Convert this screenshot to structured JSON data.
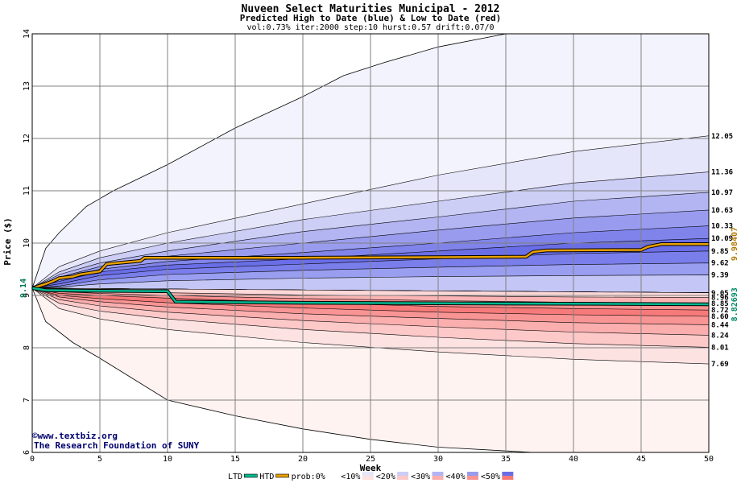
{
  "chart_data": {
    "type": "area",
    "title": "Nuveen Select Maturities Municipal  - 2012",
    "subtitle": "Predicted High to Date (blue) &  Low to Date (red)",
    "params": "vol:0.73% iter:2000 step:10 hurst:0.57 drift:0.07/0",
    "xlabel": "Week",
    "ylabel": "Price ($)",
    "xlim": [
      0,
      50
    ],
    "ylim": [
      6,
      14
    ],
    "x_ticks": [
      0,
      5,
      10,
      15,
      20,
      25,
      30,
      35,
      40,
      45,
      50
    ],
    "y_ticks": [
      6,
      7,
      8,
      9,
      10,
      11,
      12,
      13,
      14
    ],
    "grid": true,
    "start_price": 9.14,
    "start_label": "9.14",
    "watermark": [
      "©www.textbiz.org",
      "The Research Foundation of SUNY"
    ],
    "htd_end_value": 9.98407,
    "htd_end_label": "9.98407",
    "ltd_end_value": 8.82693,
    "ltd_end_label": "8.82693",
    "right_labels": [
      {
        "value": 12.05,
        "label": "12.05"
      },
      {
        "value": 11.36,
        "label": "11.36"
      },
      {
        "value": 10.97,
        "label": "10.97"
      },
      {
        "value": 10.63,
        "label": "10.63"
      },
      {
        "value": 10.33,
        "label": "10.33"
      },
      {
        "value": 10.09,
        "label": "10.09"
      },
      {
        "value": 9.85,
        "label": "9.85"
      },
      {
        "value": 9.62,
        "label": "9.62"
      },
      {
        "value": 9.39,
        "label": "9.39"
      },
      {
        "value": 9.05,
        "label": "9.05"
      },
      {
        "value": 8.96,
        "label": "8.96"
      },
      {
        "value": 8.85,
        "label": "8.85"
      },
      {
        "value": 8.72,
        "label": "8.72"
      },
      {
        "value": 8.6,
        "label": "8.60"
      },
      {
        "value": 8.44,
        "label": "8.44"
      },
      {
        "value": 8.24,
        "label": "8.24"
      },
      {
        "value": 8.01,
        "label": "8.01"
      },
      {
        "value": 7.69,
        "label": "7.69"
      }
    ],
    "outer_upper": [
      [
        0,
        9.14
      ],
      [
        1,
        9.9
      ],
      [
        2,
        10.2
      ],
      [
        4,
        10.7
      ],
      [
        6,
        11.0
      ],
      [
        10,
        11.5
      ],
      [
        15,
        12.2
      ],
      [
        20,
        12.8
      ],
      [
        23,
        13.2
      ],
      [
        26,
        13.45
      ],
      [
        30,
        13.75
      ],
      [
        35,
        14.05
      ]
    ],
    "outer_lower": [
      [
        0,
        9.14
      ],
      [
        1,
        8.5
      ],
      [
        3,
        8.1
      ],
      [
        5,
        7.8
      ],
      [
        10,
        7.0
      ],
      [
        15,
        6.7
      ],
      [
        20,
        6.45
      ],
      [
        25,
        6.25
      ],
      [
        30,
        6.1
      ],
      [
        37,
        6.0
      ]
    ],
    "bands": [
      {
        "color": "#e6e6fa",
        "upper": [
          [
            0,
            9.14
          ],
          [
            2,
            9.55
          ],
          [
            5,
            9.85
          ],
          [
            10,
            10.2
          ],
          [
            20,
            10.75
          ],
          [
            30,
            11.3
          ],
          [
            40,
            11.75
          ],
          [
            50,
            12.05
          ]
        ],
        "lower": [
          [
            0,
            9.14
          ],
          [
            50,
            9.05
          ]
        ]
      },
      {
        "color": "#cccef6",
        "upper": [
          [
            0,
            9.14
          ],
          [
            2,
            9.45
          ],
          [
            5,
            9.72
          ],
          [
            10,
            10.0
          ],
          [
            20,
            10.45
          ],
          [
            30,
            10.8
          ],
          [
            40,
            11.15
          ],
          [
            50,
            11.36
          ]
        ],
        "lower": [
          [
            0,
            9.14
          ],
          [
            50,
            9.05
          ]
        ]
      },
      {
        "color": "#b3b5f2",
        "upper": [
          [
            0,
            9.14
          ],
          [
            2,
            9.4
          ],
          [
            5,
            9.62
          ],
          [
            10,
            9.85
          ],
          [
            20,
            10.22
          ],
          [
            30,
            10.5
          ],
          [
            40,
            10.8
          ],
          [
            50,
            10.97
          ]
        ],
        "lower": [
          [
            0,
            9.14
          ],
          [
            50,
            9.05
          ]
        ]
      },
      {
        "color": "#999cee",
        "upper": [
          [
            0,
            9.14
          ],
          [
            2,
            9.35
          ],
          [
            5,
            9.55
          ],
          [
            10,
            9.75
          ],
          [
            20,
            10.0
          ],
          [
            30,
            10.25
          ],
          [
            40,
            10.48
          ],
          [
            50,
            10.63
          ]
        ],
        "lower": [
          [
            0,
            9.14
          ],
          [
            50,
            9.05
          ]
        ]
      },
      {
        "color": "#8084ea",
        "upper": [
          [
            0,
            9.14
          ],
          [
            2,
            9.3
          ],
          [
            5,
            9.5
          ],
          [
            10,
            9.65
          ],
          [
            20,
            9.82
          ],
          [
            30,
            10.0
          ],
          [
            40,
            10.2
          ],
          [
            50,
            10.33
          ]
        ],
        "lower": [
          [
            0,
            9.14
          ],
          [
            50,
            9.05
          ]
        ]
      },
      {
        "color": "#6a6ee6",
        "upper": [
          [
            0,
            9.14
          ],
          [
            2,
            9.27
          ],
          [
            5,
            9.45
          ],
          [
            10,
            9.58
          ],
          [
            20,
            9.7
          ],
          [
            30,
            9.85
          ],
          [
            40,
            10.0
          ],
          [
            50,
            10.09
          ]
        ],
        "lower": [
          [
            0,
            9.14
          ],
          [
            50,
            9.05
          ]
        ]
      },
      {
        "color": "#7a7eea",
        "upper": [
          [
            0,
            9.14
          ],
          [
            2,
            9.22
          ],
          [
            5,
            9.38
          ],
          [
            10,
            9.5
          ],
          [
            20,
            9.6
          ],
          [
            30,
            9.7
          ],
          [
            40,
            9.8
          ],
          [
            50,
            9.85
          ]
        ],
        "lower": [
          [
            0,
            9.14
          ],
          [
            50,
            9.05
          ]
        ]
      },
      {
        "color": "#9a9ef0",
        "upper": [
          [
            0,
            9.14
          ],
          [
            2,
            9.18
          ],
          [
            5,
            9.3
          ],
          [
            10,
            9.4
          ],
          [
            20,
            9.48
          ],
          [
            30,
            9.54
          ],
          [
            40,
            9.59
          ],
          [
            50,
            9.62
          ]
        ],
        "lower": [
          [
            0,
            9.14
          ],
          [
            50,
            9.05
          ]
        ]
      },
      {
        "color": "#c4c6f6",
        "upper": [
          [
            0,
            9.14
          ],
          [
            2,
            9.16
          ],
          [
            5,
            9.22
          ],
          [
            10,
            9.28
          ],
          [
            20,
            9.33
          ],
          [
            30,
            9.36
          ],
          [
            40,
            9.38
          ],
          [
            50,
            9.39
          ]
        ],
        "lower": [
          [
            0,
            9.14
          ],
          [
            50,
            9.05
          ]
        ]
      },
      {
        "color": "#fde2e2",
        "upper": [
          [
            0,
            9.14
          ],
          [
            50,
            9.05
          ]
        ],
        "lower": [
          [
            0,
            9.14
          ],
          [
            2,
            8.75
          ],
          [
            5,
            8.55
          ],
          [
            10,
            8.35
          ],
          [
            20,
            8.1
          ],
          [
            30,
            7.92
          ],
          [
            40,
            7.78
          ],
          [
            50,
            7.69
          ]
        ]
      },
      {
        "color": "#fcc8c8",
        "upper": [
          [
            0,
            9.14
          ],
          [
            50,
            9.05
          ]
        ],
        "lower": [
          [
            0,
            9.14
          ],
          [
            2,
            8.85
          ],
          [
            5,
            8.7
          ],
          [
            10,
            8.55
          ],
          [
            20,
            8.35
          ],
          [
            30,
            8.2
          ],
          [
            40,
            8.08
          ],
          [
            50,
            8.01
          ]
        ]
      },
      {
        "color": "#fbaeae",
        "upper": [
          [
            0,
            9.14
          ],
          [
            50,
            9.05
          ]
        ],
        "lower": [
          [
            0,
            9.14
          ],
          [
            2,
            8.92
          ],
          [
            5,
            8.8
          ],
          [
            10,
            8.68
          ],
          [
            20,
            8.52
          ],
          [
            30,
            8.4
          ],
          [
            40,
            8.3
          ],
          [
            50,
            8.24
          ]
        ]
      },
      {
        "color": "#f99494",
        "upper": [
          [
            0,
            9.14
          ],
          [
            50,
            9.05
          ]
        ],
        "lower": [
          [
            0,
            9.14
          ],
          [
            2,
            8.97
          ],
          [
            5,
            8.88
          ],
          [
            10,
            8.78
          ],
          [
            20,
            8.65
          ],
          [
            30,
            8.56
          ],
          [
            40,
            8.48
          ],
          [
            50,
            8.44
          ]
        ]
      },
      {
        "color": "#f77a7a",
        "upper": [
          [
            0,
            9.14
          ],
          [
            50,
            9.05
          ]
        ],
        "lower": [
          [
            0,
            9.14
          ],
          [
            2,
            9.0
          ],
          [
            5,
            8.94
          ],
          [
            10,
            8.86
          ],
          [
            20,
            8.76
          ],
          [
            30,
            8.68
          ],
          [
            40,
            8.63
          ],
          [
            50,
            8.6
          ]
        ]
      },
      {
        "color": "#f99090",
        "upper": [
          [
            0,
            9.14
          ],
          [
            50,
            9.05
          ]
        ],
        "lower": [
          [
            0,
            9.14
          ],
          [
            2,
            9.04
          ],
          [
            5,
            9.0
          ],
          [
            10,
            8.95
          ],
          [
            20,
            8.86
          ],
          [
            30,
            8.79
          ],
          [
            40,
            8.75
          ],
          [
            50,
            8.72
          ]
        ]
      },
      {
        "color": "#fbb4b4",
        "upper": [
          [
            0,
            9.14
          ],
          [
            50,
            9.05
          ]
        ],
        "lower": [
          [
            0,
            9.14
          ],
          [
            2,
            9.07
          ],
          [
            5,
            9.04
          ],
          [
            10,
            9.0
          ],
          [
            20,
            8.94
          ],
          [
            30,
            8.9
          ],
          [
            40,
            8.87
          ],
          [
            50,
            8.85
          ]
        ]
      },
      {
        "color": "#fdd8d8",
        "upper": [
          [
            0,
            9.14
          ],
          [
            50,
            9.05
          ]
        ],
        "lower": [
          [
            0,
            9.14
          ],
          [
            2,
            9.1
          ],
          [
            5,
            9.08
          ],
          [
            10,
            9.05
          ],
          [
            20,
            9.01
          ],
          [
            30,
            8.99
          ],
          [
            40,
            8.97
          ],
          [
            50,
            8.96
          ]
        ]
      }
    ],
    "series": [
      {
        "name": "HTD",
        "color": "#e8a000",
        "points": [
          [
            0,
            9.14
          ],
          [
            0.5,
            9.18
          ],
          [
            1,
            9.22
          ],
          [
            1.5,
            9.27
          ],
          [
            2,
            9.33
          ],
          [
            3,
            9.36
          ],
          [
            3.5,
            9.4
          ],
          [
            5,
            9.46
          ],
          [
            5.5,
            9.6
          ],
          [
            8,
            9.66
          ],
          [
            8.3,
            9.72
          ],
          [
            20,
            9.72
          ],
          [
            30,
            9.73
          ],
          [
            36.5,
            9.74
          ],
          [
            37,
            9.83
          ],
          [
            38,
            9.86
          ],
          [
            45,
            9.87
          ],
          [
            45.5,
            9.93
          ],
          [
            46.5,
            9.98
          ],
          [
            50,
            9.98
          ]
        ]
      },
      {
        "name": "LTD",
        "color": "#00b890",
        "points": [
          [
            0,
            9.14
          ],
          [
            1,
            9.1
          ],
          [
            4,
            9.09
          ],
          [
            10,
            9.08
          ],
          [
            10.3,
            8.98
          ],
          [
            10.6,
            8.88
          ],
          [
            20,
            8.86
          ],
          [
            30,
            8.85
          ],
          [
            42,
            8.84
          ],
          [
            50,
            8.83
          ]
        ]
      }
    ],
    "legend": {
      "placement": "bottom",
      "items": [
        {
          "label": "LTD",
          "color": "#00b890",
          "kind": "line"
        },
        {
          "label": "HTD",
          "color": "#e8a000",
          "kind": "line"
        },
        {
          "label": "prob:0%",
          "color": "#ffffff",
          "kind": "swatch"
        },
        {
          "label": "<10%",
          "color": "#e6e6fa",
          "color2": "#fde2e2",
          "kind": "swatch"
        },
        {
          "label": "<20%",
          "color": "#cccef6",
          "color2": "#fcc8c8",
          "kind": "swatch"
        },
        {
          "label": "<30%",
          "color": "#b3b5f2",
          "color2": "#fbaeae",
          "kind": "swatch"
        },
        {
          "label": "<40%",
          "color": "#999cee",
          "color2": "#f99494",
          "kind": "swatch"
        },
        {
          "label": "<50%",
          "color": "#6a6ee6",
          "color2": "#f77a7a",
          "kind": "swatch"
        }
      ]
    }
  }
}
